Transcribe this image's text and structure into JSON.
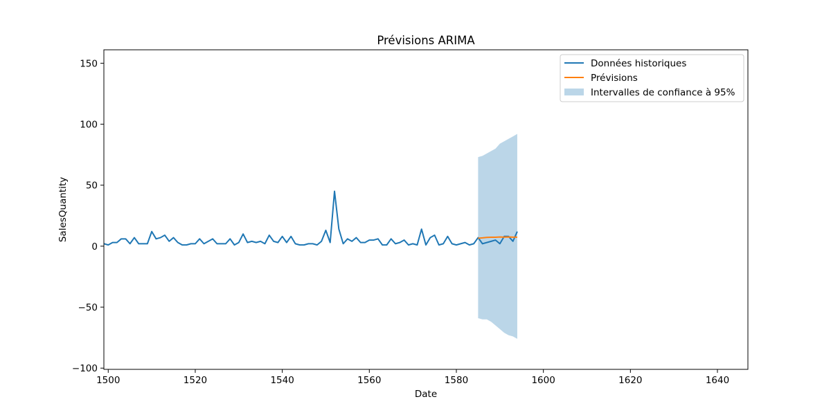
{
  "chart_data": {
    "type": "line",
    "title": "Prévisions ARIMA",
    "xlabel": "Date",
    "ylabel": "SalesQuantity",
    "xlim": [
      1499,
      1647
    ],
    "ylim": [
      -101,
      161
    ],
    "xticks": [
      1500,
      1520,
      1540,
      1560,
      1580,
      1600,
      1620,
      1640
    ],
    "yticks": [
      -100,
      -50,
      0,
      50,
      100,
      150
    ],
    "grid": false,
    "legend_position": "top-right",
    "series": [
      {
        "name": "Données historiques",
        "color": "#1f77b4",
        "x": [
          1499,
          1500,
          1501,
          1502,
          1503,
          1504,
          1505,
          1506,
          1507,
          1508,
          1509,
          1510,
          1511,
          1512,
          1513,
          1514,
          1515,
          1516,
          1517,
          1518,
          1519,
          1520,
          1521,
          1522,
          1523,
          1524,
          1525,
          1526,
          1527,
          1528,
          1529,
          1530,
          1531,
          1532,
          1533,
          1534,
          1535,
          1536,
          1537,
          1538,
          1539,
          1540,
          1541,
          1542,
          1543,
          1544,
          1545,
          1546,
          1547,
          1548,
          1549,
          1550,
          1551,
          1552,
          1553,
          1554,
          1555,
          1556,
          1557,
          1558,
          1559,
          1560,
          1561,
          1562,
          1563,
          1564,
          1565,
          1566,
          1567,
          1568,
          1569,
          1570,
          1571,
          1572,
          1573,
          1574,
          1575,
          1576,
          1577,
          1578,
          1579,
          1580,
          1581,
          1582,
          1583,
          1584,
          1585,
          1586,
          1587,
          1588,
          1589,
          1590,
          1591,
          1592,
          1593,
          1594
        ],
        "y": [
          2,
          1,
          3,
          3,
          6,
          6,
          2,
          7,
          2,
          2,
          2,
          12,
          6,
          7,
          9,
          4,
          7,
          3,
          1,
          1,
          2,
          2,
          6,
          2,
          4,
          6,
          2,
          2,
          2,
          6,
          1,
          3,
          10,
          3,
          4,
          3,
          4,
          2,
          9,
          4,
          3,
          8,
          3,
          8,
          2,
          1,
          1,
          2,
          2,
          1,
          4,
          13,
          3,
          45,
          14,
          2,
          6,
          4,
          7,
          3,
          3,
          5,
          5,
          6,
          1,
          1,
          6,
          2,
          3,
          5,
          1,
          2,
          1,
          14,
          1,
          7,
          9,
          1,
          2,
          8,
          2,
          1,
          2,
          3,
          1,
          2,
          7,
          2,
          3,
          4,
          5,
          2,
          8,
          8,
          4,
          12
        ]
      },
      {
        "name": "Prévisions",
        "color": "#ff7f0e",
        "x": [
          1585,
          1586,
          1587,
          1588,
          1589,
          1590,
          1591,
          1592,
          1593,
          1594
        ],
        "y": [
          6.5,
          6.8,
          7.2,
          7.3,
          7.3,
          7.5,
          7.4,
          7.5,
          7.4,
          7.4
        ]
      }
    ],
    "confidence_interval": {
      "name": "Intervalles de confiance à 95%",
      "color": "#1f77b4",
      "opacity": 0.3,
      "x": [
        1585,
        1586,
        1587,
        1588,
        1589,
        1590,
        1591,
        1592,
        1593,
        1594
      ],
      "lower": [
        -59,
        -60,
        -60,
        -62,
        -65,
        -68,
        -71,
        -73,
        -74,
        -76
      ],
      "upper": [
        73,
        74,
        76,
        78,
        80,
        84,
        86,
        88,
        90,
        92
      ]
    }
  }
}
